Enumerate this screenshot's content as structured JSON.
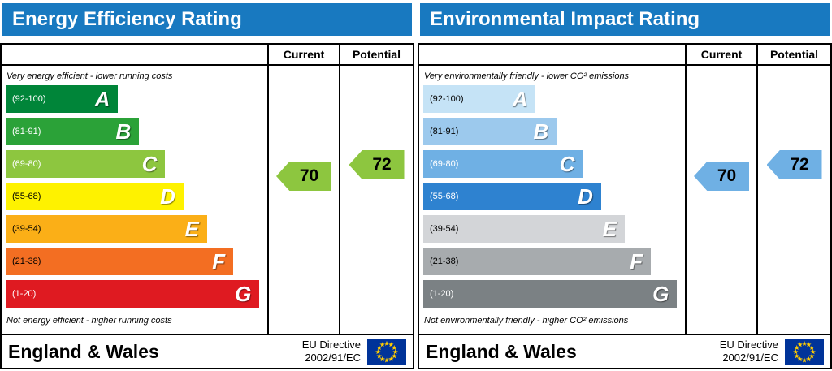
{
  "theme": {
    "header_bg": "#1879c0",
    "header_text": "#ffffff",
    "eu_flag_bg": "#003399",
    "eu_star_color": "#ffcc00"
  },
  "chart_data": [
    {
      "type": "bar",
      "title": "Energy Efficiency Rating",
      "bands": [
        {
          "letter": "A",
          "range": [
            92,
            100
          ]
        },
        {
          "letter": "B",
          "range": [
            81,
            91
          ]
        },
        {
          "letter": "C",
          "range": [
            69,
            80
          ]
        },
        {
          "letter": "D",
          "range": [
            55,
            68
          ]
        },
        {
          "letter": "E",
          "range": [
            39,
            54
          ]
        },
        {
          "letter": "F",
          "range": [
            21,
            38
          ]
        },
        {
          "letter": "G",
          "range": [
            1,
            20
          ]
        }
      ],
      "current": 70,
      "potential": 72
    },
    {
      "type": "bar",
      "title": "Environmental Impact Rating",
      "bands": [
        {
          "letter": "A",
          "range": [
            92,
            100
          ]
        },
        {
          "letter": "B",
          "range": [
            81,
            91
          ]
        },
        {
          "letter": "C",
          "range": [
            69,
            80
          ]
        },
        {
          "letter": "D",
          "range": [
            55,
            68
          ]
        },
        {
          "letter": "E",
          "range": [
            39,
            54
          ]
        },
        {
          "letter": "F",
          "range": [
            21,
            38
          ]
        },
        {
          "letter": "G",
          "range": [
            1,
            20
          ]
        }
      ],
      "current": 70,
      "potential": 72
    }
  ],
  "panels": [
    {
      "title": "Energy Efficiency Rating",
      "current_label": "Current",
      "potential_label": "Potential",
      "top_note": "Very energy efficient - lower running costs",
      "bottom_note": "Not energy efficient - higher running costs",
      "bands": [
        {
          "letter": "A",
          "range": "(92-100)",
          "color": "#008539",
          "width": "43%",
          "range_color": "#ffffff"
        },
        {
          "letter": "B",
          "range": "(81-91)",
          "color": "#2ba238",
          "width": "51%",
          "range_color": "#ffffff"
        },
        {
          "letter": "C",
          "range": "(69-80)",
          "color": "#8dc63f",
          "width": "61%",
          "range_color": "#ffffff"
        },
        {
          "letter": "D",
          "range": "(55-68)",
          "color": "#fef200",
          "width": "68%",
          "range_color": "#000000"
        },
        {
          "letter": "E",
          "range": "(39-54)",
          "color": "#fbaf17",
          "width": "77%",
          "range_color": "#000000"
        },
        {
          "letter": "F",
          "range": "(21-38)",
          "color": "#f36e22",
          "width": "87%",
          "range_color": "#000000"
        },
        {
          "letter": "G",
          "range": "(1-20)",
          "color": "#df1a21",
          "width": "97%",
          "range_color": "#ffffff"
        }
      ],
      "current": {
        "value": "70",
        "color": "#8dc63f"
      },
      "potential": {
        "value": "72",
        "color": "#8dc63f"
      },
      "footer": {
        "region": "England & Wales",
        "directive_line1": "EU Directive",
        "directive_line2": "2002/91/EC"
      }
    },
    {
      "title": "Environmental Impact Rating",
      "current_label": "Current",
      "potential_label": "Potential",
      "top_note": "Very environmentally friendly - lower CO² emissions",
      "bottom_note": "Not environmentally friendly - higher CO² emissions",
      "bands": [
        {
          "letter": "A",
          "range": "(92-100)",
          "color": "#c5e3f6",
          "width": "43%",
          "range_color": "#000000"
        },
        {
          "letter": "B",
          "range": "(81-91)",
          "color": "#9cc9ed",
          "width": "51%",
          "range_color": "#000000"
        },
        {
          "letter": "C",
          "range": "(69-80)",
          "color": "#6fb0e4",
          "width": "61%",
          "range_color": "#ffffff"
        },
        {
          "letter": "D",
          "range": "(55-68)",
          "color": "#2e82d0",
          "width": "68%",
          "range_color": "#ffffff"
        },
        {
          "letter": "E",
          "range": "(39-54)",
          "color": "#d3d5d8",
          "width": "77%",
          "range_color": "#000000"
        },
        {
          "letter": "F",
          "range": "(21-38)",
          "color": "#a7abae",
          "width": "87%",
          "range_color": "#000000"
        },
        {
          "letter": "G",
          "range": "(1-20)",
          "color": "#7b8184",
          "width": "97%",
          "range_color": "#ffffff"
        }
      ],
      "current": {
        "value": "70",
        "color": "#6fb0e4"
      },
      "potential": {
        "value": "72",
        "color": "#6fb0e4"
      },
      "footer": {
        "region": "England & Wales",
        "directive_line1": "EU Directive",
        "directive_line2": "2002/91/EC"
      }
    }
  ]
}
